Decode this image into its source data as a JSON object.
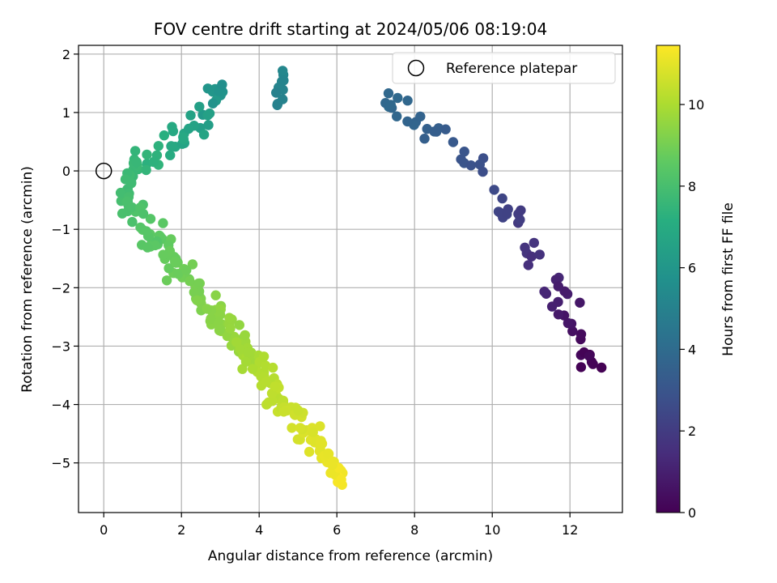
{
  "chart_data": {
    "type": "scatter",
    "title": "FOV centre drift starting at 2024/05/06 08:19:04",
    "xlabel": "Angular distance from reference (arcmin)",
    "ylabel": "Rotation from reference (arcmin)",
    "xlim": [
      -0.65,
      13.35
    ],
    "ylim": [
      -5.85,
      2.15
    ],
    "xticks": [
      0,
      2,
      4,
      6,
      8,
      10,
      12
    ],
    "yticks": [
      2,
      1,
      0,
      -1,
      -2,
      -3,
      -4,
      -5
    ],
    "grid": true,
    "legend": {
      "position": "top-right",
      "entries": [
        "Reference platepar"
      ]
    },
    "reference_point": {
      "x": 0,
      "y": 0
    },
    "colorbar": {
      "label": "Hours from first FF file",
      "colormap": "viridis",
      "range": [
        0,
        11.45
      ],
      "ticks": [
        0,
        2,
        4,
        6,
        8,
        10
      ]
    },
    "track_segments": [
      {
        "x0": 12.65,
        "y0": -3.3,
        "x1": 12.2,
        "y1": -2.8,
        "t0": 0.0,
        "t1": 0.4,
        "n": 10,
        "spread": 0.12
      },
      {
        "x0": 12.2,
        "y0": -2.8,
        "x1": 10.8,
        "y1": -1.1,
        "t0": 0.4,
        "t1": 1.9,
        "n": 22,
        "spread": 0.14
      },
      {
        "x0": 10.8,
        "y0": -1.1,
        "x1": 9.0,
        "y1": 0.45,
        "t0": 1.9,
        "t1": 3.2,
        "n": 18,
        "spread": 0.13
      },
      {
        "x0": 9.0,
        "y0": 0.45,
        "x1": 7.2,
        "y1": 1.25,
        "t0": 3.2,
        "t1": 4.0,
        "n": 12,
        "spread": 0.11
      },
      {
        "x0": 7.8,
        "y0": 0.85,
        "x1": 7.3,
        "y1": 1.2,
        "t0": 3.6,
        "t1": 3.9,
        "n": 6,
        "spread": 0.1
      },
      {
        "x0": 4.45,
        "y0": 1.05,
        "x1": 4.65,
        "y1": 1.75,
        "t0": 4.9,
        "t1": 5.3,
        "n": 10,
        "spread": 0.07
      },
      {
        "x0": 3.05,
        "y0": 1.5,
        "x1": 2.5,
        "y1": 0.9,
        "t0": 5.6,
        "t1": 6.4,
        "n": 14,
        "spread": 0.12
      },
      {
        "x0": 2.5,
        "y0": 0.9,
        "x1": 1.7,
        "y1": 0.4,
        "t0": 6.4,
        "t1": 7.0,
        "n": 16,
        "spread": 0.16
      },
      {
        "x0": 1.7,
        "y0": 0.4,
        "x1": 0.9,
        "y1": 0.2,
        "t0": 7.0,
        "t1": 7.6,
        "n": 14,
        "spread": 0.14
      },
      {
        "x0": 0.8,
        "y0": 0.1,
        "x1": 0.5,
        "y1": -0.6,
        "t0": 7.6,
        "t1": 8.0,
        "n": 22,
        "spread": 0.1
      },
      {
        "x0": 0.6,
        "y0": -0.6,
        "x1": 1.5,
        "y1": -1.3,
        "t0": 8.0,
        "t1": 8.6,
        "n": 26,
        "spread": 0.12
      },
      {
        "x0": 1.5,
        "y0": -1.3,
        "x1": 2.6,
        "y1": -2.2,
        "t0": 8.6,
        "t1": 9.2,
        "n": 32,
        "spread": 0.13
      },
      {
        "x0": 2.6,
        "y0": -2.2,
        "x1": 3.6,
        "y1": -3.0,
        "t0": 9.2,
        "t1": 9.8,
        "n": 40,
        "spread": 0.13
      },
      {
        "x0": 3.6,
        "y0": -3.0,
        "x1": 4.7,
        "y1": -4.1,
        "t0": 9.8,
        "t1": 10.5,
        "n": 44,
        "spread": 0.13
      },
      {
        "x0": 4.7,
        "y0": -4.1,
        "x1": 5.7,
        "y1": -4.8,
        "t0": 10.5,
        "t1": 11.0,
        "n": 36,
        "spread": 0.12
      },
      {
        "x0": 5.7,
        "y0": -4.8,
        "x1": 6.3,
        "y1": -5.45,
        "t0": 11.0,
        "t1": 11.45,
        "n": 20,
        "spread": 0.1
      }
    ]
  }
}
